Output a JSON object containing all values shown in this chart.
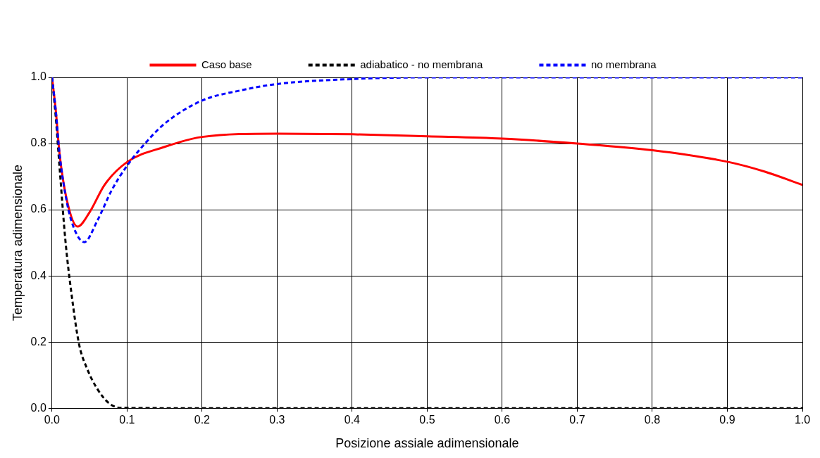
{
  "chart_data": {
    "type": "line",
    "xlabel": "Posizione assiale adimensionale",
    "ylabel": "Temperatura adimensionale",
    "xlim": [
      0,
      1
    ],
    "ylim": [
      0,
      1
    ],
    "xticks": [
      {
        "value": 0,
        "label": "0.0"
      },
      0.1,
      0.2,
      0.3,
      0.4,
      0.5,
      0.6,
      0.7,
      0.8,
      0.9,
      {
        "value": 1,
        "label": "1.0"
      }
    ],
    "yticks": [
      {
        "value": 0,
        "label": "0.0"
      },
      0.2,
      0.4,
      0.6,
      0.8,
      {
        "value": 1,
        "label": "1.0"
      }
    ],
    "grid": true,
    "legend": "top",
    "marker": "none",
    "series": [
      {
        "name": "Caso base",
        "color": "#ff0000",
        "line_style": "solid",
        "x": [
          0,
          0.005,
          0.01,
          0.02,
          0.034,
          0.05,
          0.07,
          0.1,
          0.15,
          0.2,
          0.3,
          0.4,
          0.5,
          0.6,
          0.7,
          0.8,
          0.9,
          0.95,
          1
        ],
        "values": [
          1,
          0.9,
          0.77,
          0.627,
          0.549,
          0.592,
          0.675,
          0.744,
          0.79,
          0.82,
          0.83,
          0.828,
          0.822,
          0.815,
          0.8,
          0.78,
          0.745,
          0.715,
          0.675
        ]
      },
      {
        "name": "adiabatico - no membrana",
        "color": "#000000",
        "line_style": "dashed",
        "x": [
          0,
          0.005,
          0.01,
          0.018,
          0.026,
          0.036,
          0.047,
          0.061,
          0.076,
          0.092,
          0.2,
          0.4,
          0.6,
          0.8,
          1
        ],
        "values": [
          1,
          0.88,
          0.73,
          0.503,
          0.345,
          0.194,
          0.118,
          0.056,
          0.015,
          0.001,
          0,
          0,
          0,
          0,
          0
        ]
      },
      {
        "name": "no membrana",
        "color": "#0000ff",
        "line_style": "dashed",
        "x": [
          0,
          0.005,
          0.01,
          0.02,
          0.03,
          0.043,
          0.06,
          0.08,
          0.1,
          0.12,
          0.15,
          0.2,
          0.25,
          0.3,
          0.4,
          0.5,
          0.7,
          1
        ],
        "values": [
          1,
          0.9,
          0.77,
          0.62,
          0.54,
          0.502,
          0.565,
          0.661,
          0.733,
          0.79,
          0.86,
          0.93,
          0.96,
          0.98,
          0.995,
          1,
          1,
          1
        ]
      }
    ]
  }
}
